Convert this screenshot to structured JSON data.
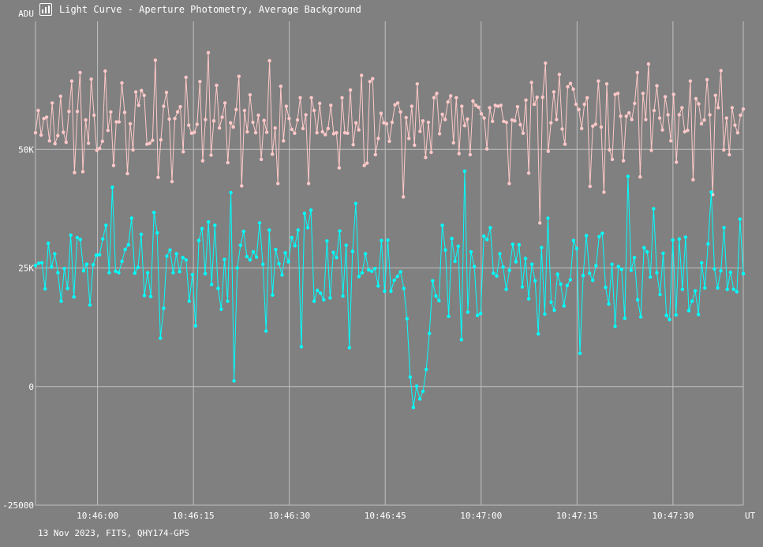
{
  "window": {
    "title": "Light Curve - Aperture Photometry, Average Background",
    "icon": "chart-icon"
  },
  "footer": {
    "text": "13 Nov 2023, FITS, QHY174-GPS"
  },
  "colors": {
    "background": "#808080",
    "grid": "#c0c0c0",
    "series_top": "#ffc8c8",
    "series_bottom": "#00ffff"
  },
  "chart_data": {
    "type": "line",
    "title": "Light Curve - Aperture Photometry, Average Background",
    "xlabel": "UT",
    "ylabel": "ADU",
    "xlim": [
      "10:45:50.3",
      "10:47:41.0"
    ],
    "ylim": [
      -25000,
      77000
    ],
    "x_ticks": [
      "10:46:00",
      "10:46:15",
      "10:46:30",
      "10:46:45",
      "10:47:00",
      "10:47:15",
      "10:47:30",
      "UT"
    ],
    "y_ticks": [
      "ADU",
      "50K",
      "25K",
      "0",
      "-25000"
    ],
    "grid": true,
    "legend": "none",
    "series": [
      {
        "color": "#ffc8c8",
        "values": [
          53500,
          58200,
          53000,
          56500,
          56800,
          51800,
          59800,
          51200,
          52900,
          61200,
          53600,
          51500,
          58000,
          64400,
          45100,
          58000,
          66200,
          45300,
          56200,
          51300,
          64800,
          57200,
          49800,
          50200,
          51700,
          66500,
          54000,
          57900,
          46600,
          55800,
          55800,
          64000,
          57800,
          44900,
          55400,
          49900,
          62100,
          59300,
          62400,
          61400,
          51100,
          51300,
          51900,
          68800,
          44100,
          52000,
          59100,
          62000,
          56400,
          43200,
          56500,
          57900,
          59000,
          49500,
          65200,
          55100,
          53400,
          53600,
          55300,
          64300,
          47600,
          56300,
          70400,
          48800,
          56000,
          63500,
          54500,
          56800,
          59800,
          47200,
          55600,
          54700,
          58400,
          65400,
          42300,
          58200,
          53700,
          61500,
          55700,
          53500,
          57200,
          47900,
          56100,
          53600,
          68700,
          49000,
          54500,
          42800,
          63300,
          51800,
          59100,
          56500,
          54200,
          53400,
          56200,
          60900,
          54400,
          57300,
          42800,
          60900,
          58200,
          53500,
          59700,
          53700,
          53100,
          54400,
          59300,
          53300,
          53500,
          46100,
          60900,
          53500,
          53400,
          62500,
          51000,
          55600,
          54100,
          65600,
          46600,
          47100,
          64300,
          64900,
          48900,
          52300,
          57600,
          55600,
          55400,
          51700,
          55700,
          59400,
          59800,
          57900,
          40000,
          56700,
          52300,
          59100,
          50900,
          63800,
          53800,
          56000,
          48300,
          55700,
          49400,
          60900,
          61800,
          53300,
          57400,
          56300,
          60000,
          61300,
          51400,
          60900,
          49100,
          59100,
          55000,
          56400,
          48900,
          60200,
          59300,
          58900,
          57500,
          56600,
          50100,
          58800,
          55900,
          59300,
          59100,
          59300,
          55900,
          55700,
          42800,
          56200,
          56000,
          59000,
          55200,
          53400,
          60400,
          45000,
          64100,
          59500,
          61000,
          34500,
          61000,
          68200,
          49600,
          55600,
          62100,
          56300,
          65800,
          54300,
          51100,
          63200,
          63900,
          62700,
          59500,
          58400,
          54400,
          59500,
          60900,
          42200,
          54900,
          55300,
          64400,
          54700,
          41000,
          63800,
          49900,
          47900,
          61600,
          61800,
          57000,
          47600,
          57000,
          57700,
          56300,
          59700,
          66200,
          44200,
          61800,
          56300,
          68000,
          49800,
          58200,
          63400,
          56600,
          54100,
          61100,
          57300,
          51800,
          61600,
          47300,
          57300,
          58800,
          53700,
          54000,
          64400,
          43600,
          60700,
          59600,
          55400,
          56200,
          64700,
          57300,
          40500,
          61400,
          58800,
          66600,
          49900,
          56600,
          48900,
          58800,
          55100,
          53500,
          57200,
          58500
        ],
        "x_first": "10:45:50.3",
        "x_last": "10:47:41.0"
      },
      {
        "color": "#00ffff",
        "values": [
          25500,
          26000,
          26100,
          20600,
          30200,
          25200,
          28000,
          24000,
          18000,
          24900,
          20700,
          31900,
          18900,
          31400,
          31000,
          24400,
          25800,
          17200,
          25700,
          27700,
          27800,
          31100,
          34000,
          24000,
          42000,
          24300,
          24000,
          26400,
          28900,
          29900,
          35500,
          23900,
          25100,
          32100,
          19200,
          24000,
          19000,
          36700,
          32400,
          10200,
          16500,
          27500,
          28800,
          24000,
          28000,
          24200,
          27200,
          26700,
          18000,
          23600,
          12800,
          30800,
          33300,
          23800,
          34700,
          21500,
          34000,
          20700,
          16300,
          26800,
          18000,
          40900,
          1200,
          25000,
          29800,
          32700,
          27400,
          26700,
          28400,
          27300,
          34500,
          25800,
          11700,
          33000,
          19300,
          28900,
          25900,
          23500,
          28200,
          26300,
          31400,
          29700,
          33000,
          8400,
          36500,
          33500,
          37200,
          18000,
          20300,
          19700,
          18300,
          30700,
          18700,
          28300,
          27200,
          32800,
          19100,
          29800,
          8200,
          28500,
          38600,
          23200,
          24000,
          28000,
          24600,
          24300,
          24900,
          21200,
          30800,
          20100,
          30900,
          20100,
          22400,
          23200,
          24200,
          20700,
          14300,
          2000,
          -4400,
          100,
          -2600,
          -1000,
          3600,
          11200,
          22300,
          19100,
          18100,
          34000,
          28800,
          14800,
          31200,
          26400,
          29600,
          9900,
          45400,
          15700,
          28400,
          25300,
          15000,
          15400,
          31700,
          31000,
          33500,
          23900,
          23300,
          28000,
          25200,
          20500,
          24500,
          30000,
          26300,
          29900,
          21000,
          27000,
          18500,
          25800,
          22300,
          11100,
          29300,
          15300,
          35500,
          17800,
          16100,
          23700,
          21600,
          17000,
          21300,
          22500,
          30800,
          29100,
          7000,
          23400,
          31800,
          23900,
          22400,
          25500,
          31600,
          32300,
          20900,
          17400,
          25800,
          12700,
          25300,
          24700,
          14400,
          44300,
          24500,
          27200,
          18300,
          14700,
          29300,
          28400,
          23100,
          37500,
          24000,
          19400,
          28100,
          15000,
          14100,
          30900,
          15100,
          31100,
          20500,
          31500,
          16000,
          18000,
          20200,
          15200,
          26100,
          20800,
          30100,
          41000,
          24800,
          20800,
          24400,
          33500,
          20500,
          24100,
          20500,
          20000,
          35300,
          23800
        ],
        "x_first": "10:45:50.3",
        "x_last": "10:47:41.0"
      }
    ]
  }
}
